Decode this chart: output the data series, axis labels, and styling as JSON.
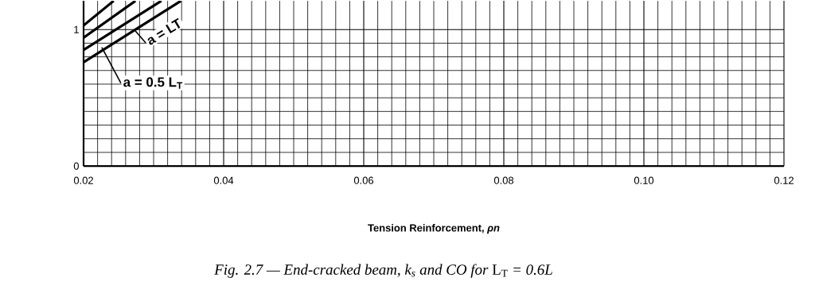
{
  "chart_data": {
    "type": "line",
    "title": "*Fig. 2.7 — End-cracked beam, k$_{s}$ and CO for* L$_{T}$ *= 0.6L*",
    "xlabel": "Tension   Reinforcement,  *ρn*",
    "series": [
      {
        "color": "#000000",
        "x": [
          0.02,
          0.0339
        ],
        "values": [
          0.76,
          1.21
        ]
      },
      {
        "color": "#000000",
        "x": [
          0.02,
          0.0311
        ],
        "values": [
          0.85,
          1.21
        ]
      },
      {
        "color": "#000000",
        "x": [
          0.02,
          0.0274
        ],
        "values": [
          0.94,
          1.21
        ]
      },
      {
        "color": "#000000",
        "x": [
          0.02,
          0.0243
        ],
        "values": [
          1.03,
          1.21
        ]
      }
    ],
    "xlim": [
      0.02,
      0.12
    ],
    "ylim": [
      0,
      1.21
    ],
    "xticks": [
      0.02,
      0.04,
      0.06,
      0.08,
      {
        "value": 0.1,
        "label": "0.10"
      },
      0.12
    ],
    "yticks": [
      0,
      1
    ],
    "grid": true,
    "line_style": "solid",
    "marker": "none",
    "annotations": [
      {
        "text": "a = LT",
        "x": 0.0274,
        "y": 0.99
      },
      {
        "text": "a = 0.5 L$_{T}$",
        "x": 0.0226,
        "y": 0.87
      }
    ]
  }
}
